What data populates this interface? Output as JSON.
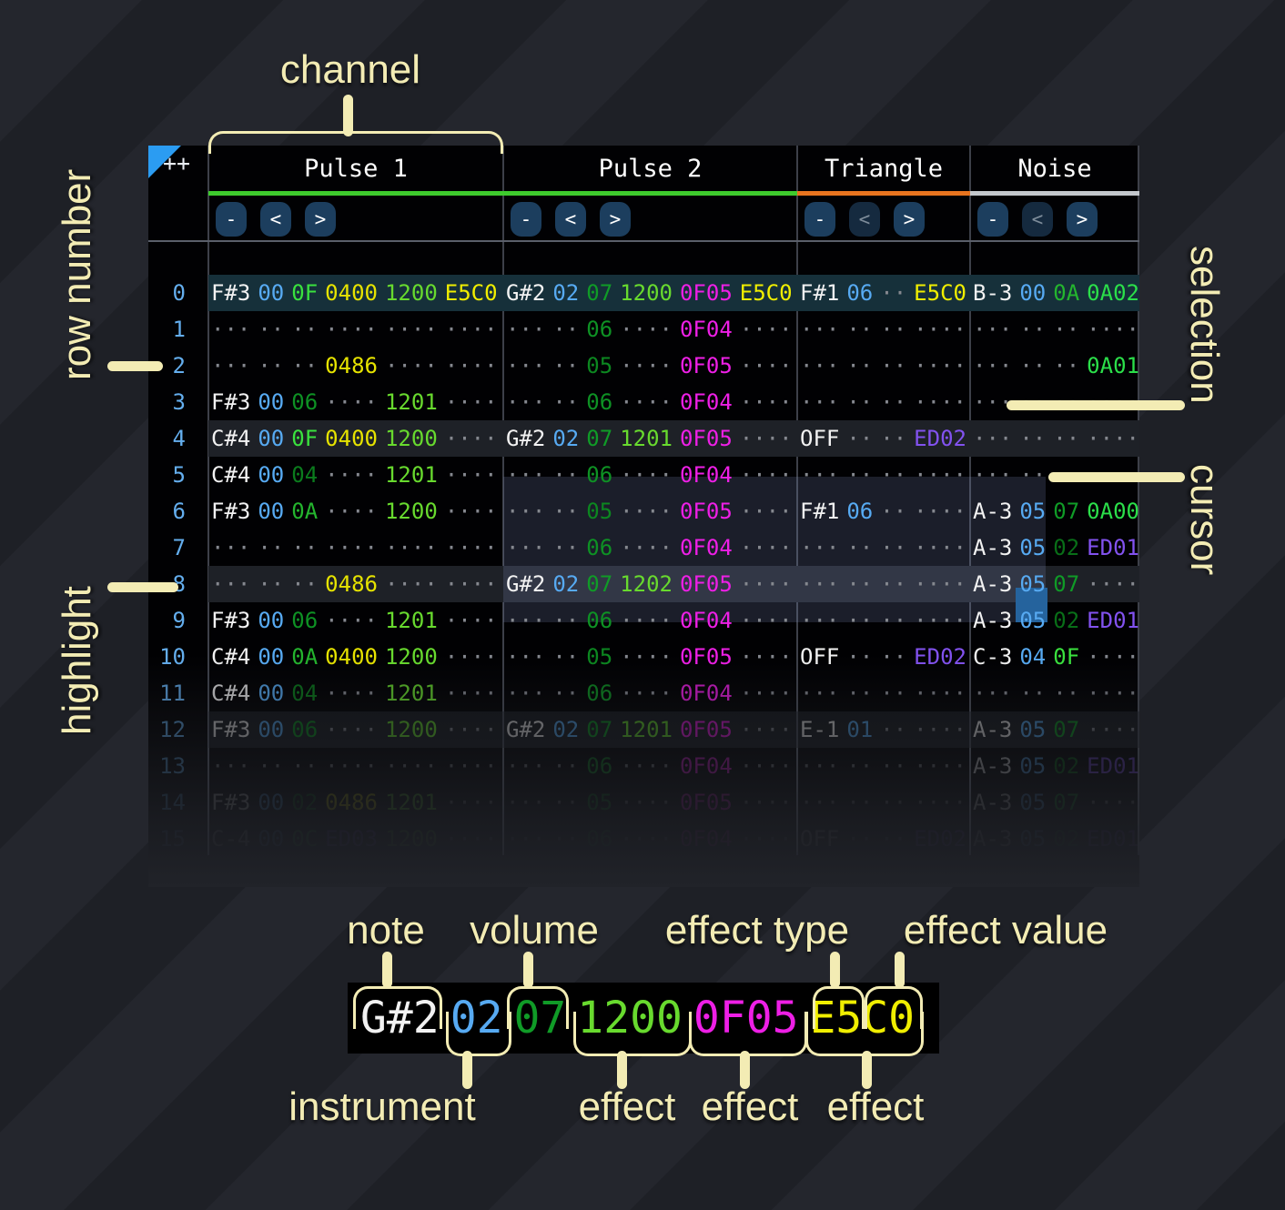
{
  "corner_text": "++",
  "annotations": {
    "channel": "channel",
    "row_number": "row number",
    "highlight": "highlight",
    "selection": "selection",
    "cursor": "cursor",
    "note": "note",
    "volume": "volume",
    "effect_type": "effect type",
    "effect_value": "effect value",
    "instrument": "instrument",
    "effect1": "effect",
    "effect2": "effect",
    "effect3": "effect"
  },
  "channels": [
    {
      "name": "Pulse 1",
      "underline": "#3ecb2d",
      "buttons": [
        {
          "label": "-",
          "disabled": false
        },
        {
          "label": "<",
          "disabled": false
        },
        {
          "label": ">",
          "disabled": false
        }
      ]
    },
    {
      "name": "Pulse 2",
      "underline": "#3ecb2d",
      "buttons": [
        {
          "label": "-",
          "disabled": false
        },
        {
          "label": "<",
          "disabled": false
        },
        {
          "label": ">",
          "disabled": false
        }
      ]
    },
    {
      "name": "Triangle",
      "underline": "#e8741f",
      "buttons": [
        {
          "label": "-",
          "disabled": false
        },
        {
          "label": "<",
          "disabled": true
        },
        {
          "label": ">",
          "disabled": false
        }
      ]
    },
    {
      "name": "Noise",
      "underline": "#c3c7cc",
      "buttons": [
        {
          "label": "-",
          "disabled": false
        },
        {
          "label": "<",
          "disabled": true
        },
        {
          "label": ">",
          "disabled": false
        }
      ]
    }
  ],
  "colors": {
    "note": "#f2f2f2",
    "instrument": "#57aaf2",
    "dots": "#85888f",
    "row_number": "#64aeee",
    "volume_default": "#109b27",
    "volume_levels": {
      "0F": "#3ae23e",
      "0C": "#33d438",
      "0A": "#24b52e",
      "07": "#109b27",
      "06": "#0e9124",
      "05": "#0c8720",
      "04": "#0b7c1d",
      "02": "#096e18"
    },
    "effects": {
      "04": "#e6e300",
      "E5": "#f0ee00",
      "12": "#68da2e",
      "0F": "#ee1fe6",
      "ED": "#8252ef",
      "0A": "#2bdf4a"
    }
  },
  "pattern": {
    "field_widths_pulse": [
      3,
      2,
      2,
      4,
      4,
      4
    ],
    "field_widths_short": [
      3,
      2,
      2,
      4
    ],
    "rows": [
      {
        "n": "0",
        "hl": "major",
        "cells": [
          [
            "F#3",
            "00",
            "0F",
            "0400",
            "1200",
            "E5C0"
          ],
          [
            "G#2",
            "02",
            "07",
            "1200",
            "0F05",
            "E5C0"
          ],
          [
            "F#1",
            "06",
            null,
            "E5C0"
          ],
          [
            "B-3",
            "00",
            "0A",
            "0A02"
          ]
        ]
      },
      {
        "n": "1",
        "cells": [
          [
            null,
            null,
            null,
            null,
            null,
            null
          ],
          [
            null,
            null,
            "06",
            null,
            "0F04",
            null
          ],
          [
            null,
            null,
            null,
            null
          ],
          [
            null,
            null,
            null,
            null
          ]
        ]
      },
      {
        "n": "2",
        "cells": [
          [
            null,
            null,
            null,
            "0486",
            null,
            null
          ],
          [
            null,
            null,
            "05",
            null,
            "0F05",
            null
          ],
          [
            null,
            null,
            null,
            null
          ],
          [
            null,
            null,
            null,
            "0A01"
          ]
        ]
      },
      {
        "n": "3",
        "cells": [
          [
            "F#3",
            "00",
            "06",
            null,
            "1201",
            null
          ],
          [
            null,
            null,
            "06",
            null,
            "0F04",
            null
          ],
          [
            null,
            null,
            null,
            null
          ],
          [
            null,
            null,
            null,
            null
          ]
        ]
      },
      {
        "n": "4",
        "hl": "minor",
        "cells": [
          [
            "C#4",
            "00",
            "0F",
            "0400",
            "1200",
            null
          ],
          [
            "G#2",
            "02",
            "07",
            "1201",
            "0F05",
            null
          ],
          [
            "OFF",
            null,
            null,
            "ED02"
          ],
          [
            null,
            null,
            null,
            null
          ]
        ]
      },
      {
        "n": "5",
        "cells": [
          [
            "C#4",
            "00",
            "04",
            null,
            "1201",
            null
          ],
          [
            null,
            null,
            "06",
            null,
            "0F04",
            null
          ],
          [
            null,
            null,
            null,
            null
          ],
          [
            null,
            null,
            null,
            null
          ]
        ]
      },
      {
        "n": "6",
        "cells": [
          [
            "F#3",
            "00",
            "0A",
            null,
            "1200",
            null
          ],
          [
            null,
            null,
            "05",
            null,
            "0F05",
            null
          ],
          [
            "F#1",
            "06",
            null,
            null
          ],
          [
            "A-3",
            "05",
            "07",
            "0A00"
          ]
        ]
      },
      {
        "n": "7",
        "cells": [
          [
            null,
            null,
            null,
            null,
            null,
            null
          ],
          [
            null,
            null,
            "06",
            null,
            "0F04",
            null
          ],
          [
            null,
            null,
            null,
            null
          ],
          [
            "A-3",
            "05",
            "02",
            "ED01"
          ]
        ]
      },
      {
        "n": "8",
        "hl": "minor",
        "cells": [
          [
            null,
            null,
            null,
            "0486",
            null,
            null
          ],
          [
            "G#2",
            "02",
            "07",
            "1202",
            "0F05",
            null
          ],
          [
            null,
            null,
            null,
            null
          ],
          [
            "A-3",
            "05",
            "07",
            null
          ]
        ]
      },
      {
        "n": "9",
        "cells": [
          [
            "F#3",
            "00",
            "06",
            null,
            "1201",
            null
          ],
          [
            null,
            null,
            "06",
            null,
            "0F04",
            null
          ],
          [
            null,
            null,
            null,
            null
          ],
          [
            "A-3",
            "05",
            "02",
            "ED01"
          ]
        ]
      },
      {
        "n": "10",
        "cells": [
          [
            "C#4",
            "00",
            "0A",
            "0400",
            "1200",
            null
          ],
          [
            null,
            null,
            "05",
            null,
            "0F05",
            null
          ],
          [
            "OFF",
            null,
            null,
            "ED02"
          ],
          [
            "C-3",
            "04",
            "0F",
            null
          ]
        ]
      },
      {
        "n": "11",
        "fade": 0.8,
        "cells": [
          [
            "C#4",
            "00",
            "04",
            null,
            "1201",
            null
          ],
          [
            null,
            null,
            "06",
            null,
            "0F04",
            null
          ],
          [
            null,
            null,
            null,
            null
          ],
          [
            null,
            null,
            null,
            null
          ]
        ]
      },
      {
        "n": "12",
        "hl": "minor",
        "fade": 0.55,
        "cells": [
          [
            "F#3",
            "00",
            "06",
            null,
            "1200",
            null
          ],
          [
            "G#2",
            "02",
            "07",
            "1201",
            "0F05",
            null
          ],
          [
            "E-1",
            "01",
            null,
            null
          ],
          [
            "A-3",
            "05",
            "07",
            null
          ]
        ]
      },
      {
        "n": "13",
        "fade": 0.4,
        "cells": [
          [
            null,
            null,
            null,
            null,
            null,
            null
          ],
          [
            null,
            null,
            "06",
            null,
            "0F04",
            null
          ],
          [
            null,
            null,
            null,
            null
          ],
          [
            "A-3",
            "05",
            "02",
            "ED01"
          ]
        ]
      },
      {
        "n": "14",
        "fade": 0.26,
        "cells": [
          [
            "F#3",
            "00",
            "02",
            "0486",
            "1201",
            null
          ],
          [
            null,
            null,
            "05",
            null,
            "0F05",
            null
          ],
          [
            null,
            null,
            null,
            null
          ],
          [
            "A-3",
            "05",
            "07",
            null
          ]
        ]
      },
      {
        "n": "15",
        "fade": 0.13,
        "cells": [
          [
            "C-4",
            "00",
            "0C",
            "ED03",
            "1200",
            null
          ],
          [
            null,
            null,
            "06",
            null,
            "0F04",
            null
          ],
          [
            "OFF",
            null,
            null,
            "ED02"
          ],
          [
            "A-3",
            "05",
            "02",
            "ED01"
          ]
        ]
      }
    ]
  },
  "example": {
    "fields": [
      {
        "name": "note",
        "text": "G#2",
        "color": "#f2f2f2"
      },
      {
        "name": "instrument",
        "text": "02",
        "color": "#57aaf2"
      },
      {
        "name": "volume",
        "text": "07",
        "color": "#109b27"
      },
      {
        "name": "effect-1",
        "text": "1200",
        "color": "#68da2e"
      },
      {
        "name": "effect-2",
        "text": "0F05",
        "color": "#ee1fe6"
      },
      {
        "name": "effect-3",
        "text": "E5C0",
        "color": "#f0ee00"
      }
    ]
  }
}
